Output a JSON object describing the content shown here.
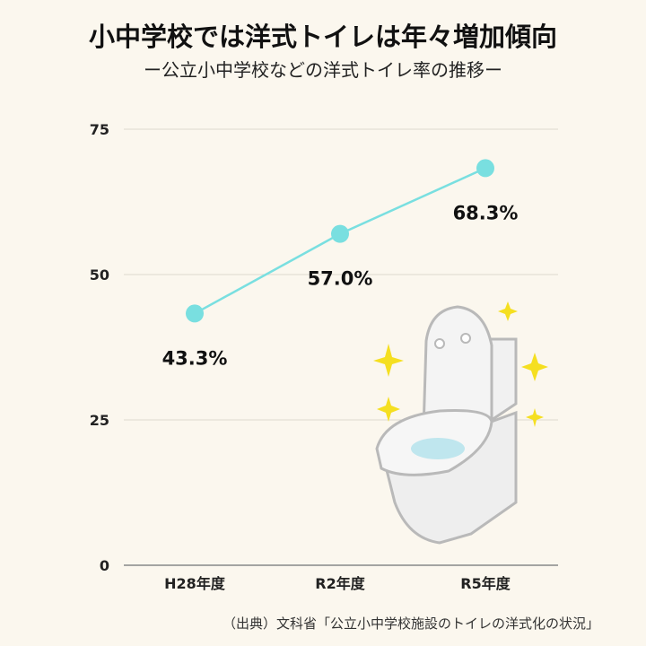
{
  "title": "小中学校では洋式トイレは年々増加傾向",
  "subtitle": "ー公立小中学校などの洋式トイレ率の推移ー",
  "source": "（出典）文科省「公立小中学校施設のトイレの洋式化の状況」",
  "chart_data": {
    "type": "line",
    "title": "小中学校では洋式トイレは年々増加傾向",
    "subtitle": "ー公立小中学校などの洋式トイレ率の推移ー",
    "xlabel": "",
    "ylabel": "",
    "categories": [
      "H28年度",
      "R2年度",
      "R5年度"
    ],
    "series": [
      {
        "name": "洋式トイレ率",
        "values": [
          43.3,
          57.0,
          68.3
        ],
        "color": "#79dfe0"
      }
    ],
    "data_labels": [
      "43.3%",
      "57.0%",
      "68.3%"
    ],
    "yticks": [
      "0",
      "25",
      "50",
      "75"
    ],
    "ytick_values": [
      0,
      25,
      50,
      75
    ],
    "ylim": [
      0,
      75
    ],
    "grid": true,
    "legend": "none"
  }
}
